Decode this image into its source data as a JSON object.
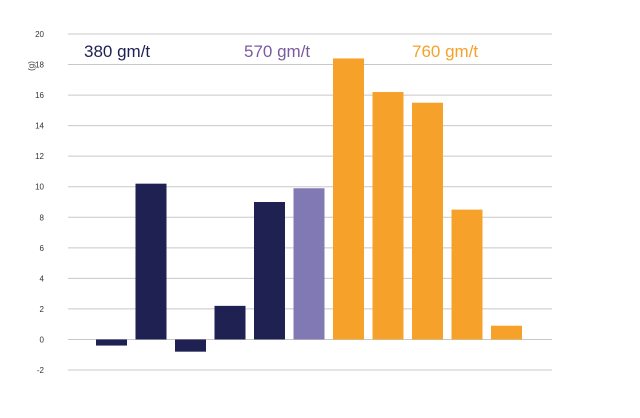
{
  "chart_data": {
    "type": "bar",
    "ylabel": "(g)",
    "ylim": [
      -2,
      20
    ],
    "yticks": [
      -2,
      0,
      2,
      4,
      6,
      8,
      10,
      12,
      14,
      16,
      18,
      20
    ],
    "grid": true,
    "annotations": [
      {
        "text": "380 gm/t",
        "color": "#1e2152"
      },
      {
        "text": "570 gm/t",
        "color": "#7a5aa0"
      },
      {
        "text": "760 gm/t",
        "color": "#f5a12a"
      }
    ],
    "bars": [
      {
        "value": -0.4,
        "color": "#1e2152"
      },
      {
        "value": 10.2,
        "color": "#1e2152"
      },
      {
        "value": -0.8,
        "color": "#1e2152"
      },
      {
        "value": 2.2,
        "color": "#1e2152"
      },
      {
        "value": 9.0,
        "color": "#1e2152"
      },
      {
        "value": 9.9,
        "color": "#8179b4"
      },
      {
        "value": 18.4,
        "color": "#f5a12a"
      },
      {
        "value": 16.2,
        "color": "#f5a12a"
      },
      {
        "value": 15.5,
        "color": "#f5a12a"
      },
      {
        "value": 8.5,
        "color": "#f5a12a"
      },
      {
        "value": 0.9,
        "color": "#f5a12a"
      }
    ]
  },
  "colors": {
    "grid": "#c8c8c8",
    "axis": "#555555",
    "background": "#ffffff"
  }
}
